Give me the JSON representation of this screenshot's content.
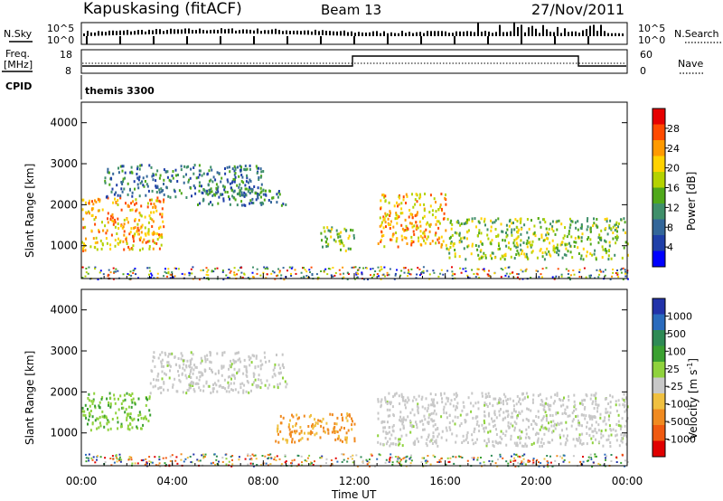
{
  "header": {
    "station": "Kapuskasing (fitACF)",
    "beam": "Beam 13",
    "date": "27/Nov/2011"
  },
  "top_panels": {
    "nsky_label": "N.Sky",
    "nsearch_label": "N.Search",
    "count_ticks": [
      "10^5",
      "10^0"
    ],
    "freq_label": "Freq.",
    "freq_unit": "[MHz]",
    "freq_ticks": [
      "18",
      "8"
    ],
    "nave_label": "Nave",
    "nave_ticks": [
      "60",
      "0"
    ],
    "cpid_label": "CPID",
    "cpid_value": "themis 3300"
  },
  "power_scale": {
    "label": "Power [dB]",
    "ticks": [
      "28",
      "24",
      "20",
      "16",
      "12",
      "8",
      "4"
    ],
    "colors": [
      "#e60000",
      "#ff4a00",
      "#ff9a00",
      "#ffd200",
      "#b4d200",
      "#4fa81a",
      "#3f8f6a",
      "#336699",
      "#1f3fa8",
      "#0000ff"
    ]
  },
  "velocity_scale": {
    "label": "Velocity [m s",
    "label_sup": "-1",
    "label_end": "]",
    "ticks": [
      "1000",
      "500",
      "100",
      "25",
      "-25",
      "-100",
      "-500",
      "-1000"
    ],
    "colors": [
      "#2233aa",
      "#2a6bbd",
      "#2e8a55",
      "#3aa030",
      "#8fd23c",
      "#c8c8c8",
      "#f0c040",
      "#f08a20",
      "#f05a10",
      "#e00000"
    ]
  },
  "axes": {
    "ylabel": "Slant Range [km]",
    "xlabel": "Time UT",
    "y_ticks": [
      "1000",
      "2000",
      "3000",
      "4000"
    ],
    "x_ticks": [
      "00:00",
      "04:00",
      "08:00",
      "12:00",
      "16:00",
      "20:00",
      "00:00"
    ]
  },
  "chart_data": [
    {
      "type": "heatmap",
      "title": "",
      "xlabel": "Time UT",
      "ylabel": "Slant Range [km]",
      "xlim": [
        0,
        24
      ],
      "ylim": [
        200,
        4500
      ],
      "colorbar": "Power [dB]",
      "colorbar_range": [
        0,
        30
      ],
      "bands": [
        {
          "x": [
            0.0,
            3.6
          ],
          "range_km": [
            900,
            2200
          ],
          "power_db": 22
        },
        {
          "x": [
            1.0,
            8.0
          ],
          "range_km": [
            2200,
            3000
          ],
          "power_db": 8
        },
        {
          "x": [
            5.0,
            9.0
          ],
          "range_km": [
            2000,
            2400
          ],
          "power_db": 8
        },
        {
          "x": [
            10.5,
            12.0
          ],
          "range_km": [
            900,
            1500
          ],
          "power_db": 14
        },
        {
          "x": [
            13.0,
            16.0
          ],
          "range_km": [
            1000,
            2300
          ],
          "power_db": 20
        },
        {
          "x": [
            16.0,
            24.0
          ],
          "range_km": [
            700,
            1700
          ],
          "power_db": 14
        }
      ]
    },
    {
      "type": "heatmap",
      "title": "",
      "xlabel": "Time UT",
      "ylabel": "Slant Range [km]",
      "xlim": [
        0,
        24
      ],
      "ylim": [
        200,
        4500
      ],
      "colorbar": "Velocity [m s-1]",
      "colorbar_range": [
        -1000,
        1000
      ],
      "bands": [
        {
          "x": [
            0.0,
            3.0
          ],
          "range_km": [
            1100,
            2000
          ],
          "velocity": 60
        },
        {
          "x": [
            3.0,
            9.0
          ],
          "range_km": [
            2000,
            3000
          ],
          "velocity": 0
        },
        {
          "x": [
            8.5,
            12.0
          ],
          "range_km": [
            800,
            1500
          ],
          "velocity": -150
        },
        {
          "x": [
            13.0,
            24.0
          ],
          "range_km": [
            700,
            2000
          ],
          "velocity": 0
        }
      ]
    }
  ]
}
